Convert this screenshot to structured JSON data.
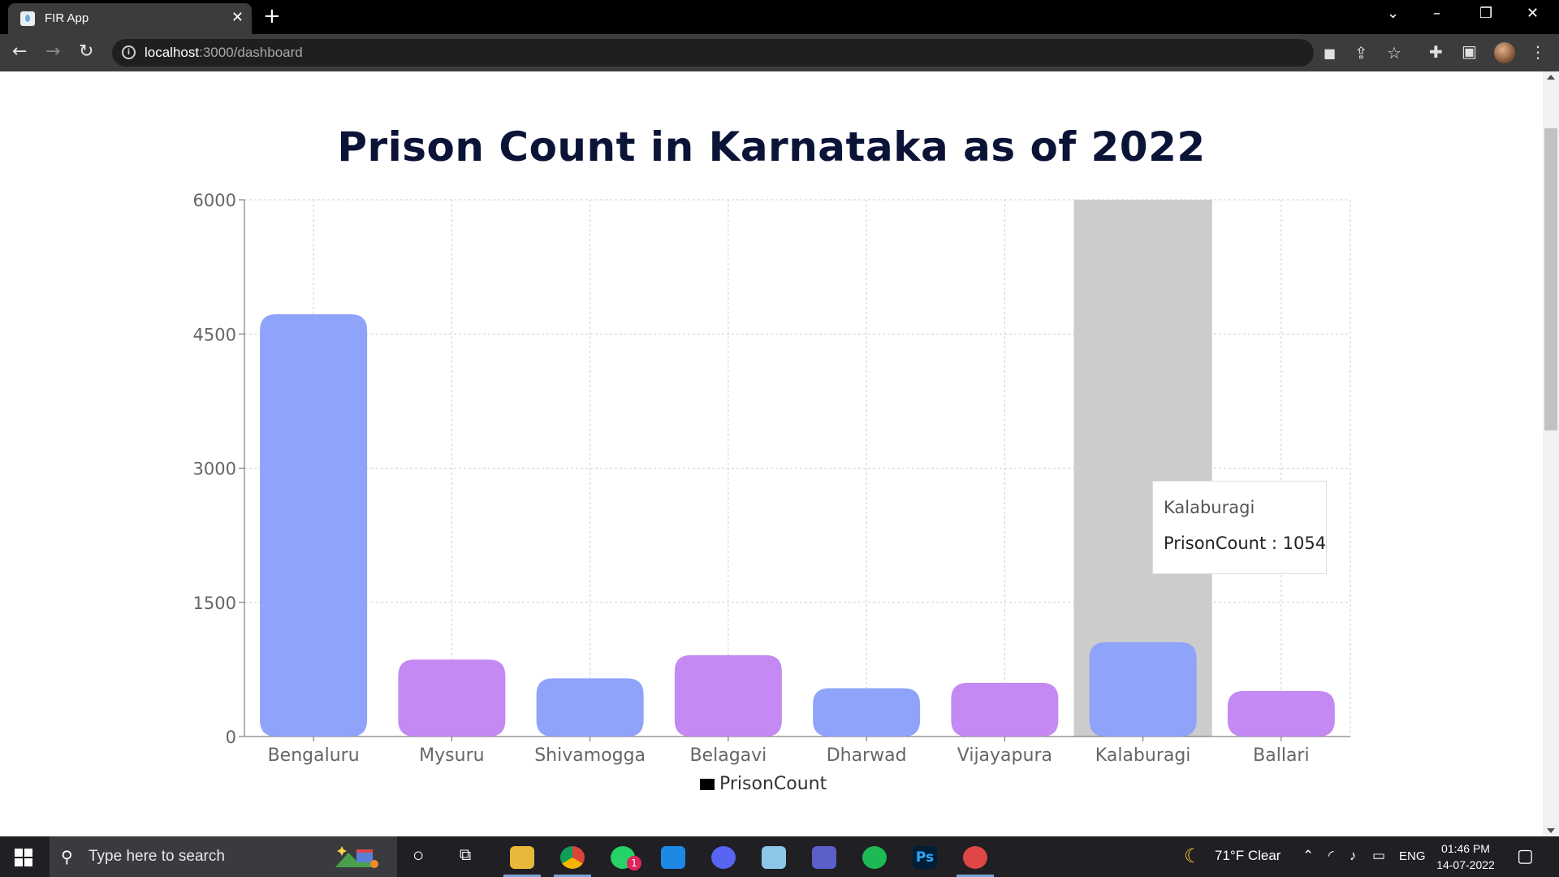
{
  "browser": {
    "tab_title": "FIR App",
    "url_host": "localhost",
    "url_path": ":3000/dashboard"
  },
  "chart_data": {
    "type": "bar",
    "title": "Prison Count in Karnataka as of 2022",
    "categories": [
      "Bengaluru",
      "Mysuru",
      "Shivamogga",
      "Belagavi",
      "Dharwad",
      "Vijayapura",
      "Kalaburagi",
      "Ballari"
    ],
    "series": [
      {
        "name": "PrisonCount",
        "values": [
          4720,
          860,
          650,
          910,
          540,
          600,
          1054,
          510
        ]
      }
    ],
    "bar_colors": [
      "#8fa3fa",
      "#c489f2",
      "#8fa3fa",
      "#c489f2",
      "#8fa3fa",
      "#c489f2",
      "#8fa3fa",
      "#c489f2"
    ],
    "ylim": [
      0,
      6000
    ],
    "yticks": [
      0,
      1500,
      3000,
      4500,
      6000
    ],
    "grid": true,
    "legend": "bottom",
    "highlight_category": "Kalaburagi"
  },
  "tooltip": {
    "title": "Kalaburagi",
    "value_text": "PrisonCount : 1054"
  },
  "taskbar": {
    "search_placeholder": "Type here to search",
    "weather": "71°F  Clear",
    "language": "ENG",
    "time": "01:46 PM",
    "date": "14-07-2022",
    "whatsapp_badge": "1",
    "photoshop_label": "Ps"
  }
}
